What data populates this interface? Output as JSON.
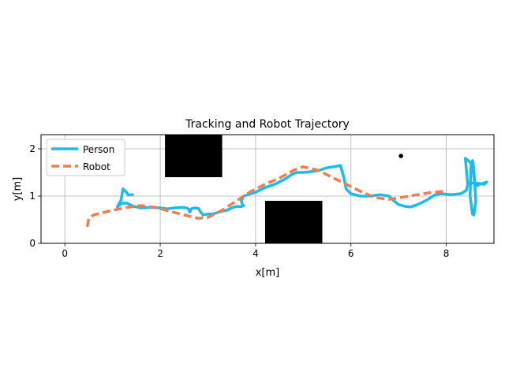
{
  "chart_data": {
    "type": "line",
    "title": "Tracking and Robot Trajectory",
    "xlabel": "x[m]",
    "ylabel": "y[m]",
    "xlim": [
      -0.5,
      9.0
    ],
    "ylim": [
      0,
      2.3
    ],
    "xticks": [
      0,
      2,
      4,
      6,
      8
    ],
    "yticks": [
      0,
      1,
      2
    ],
    "grid": true,
    "legend_position": "upper-left",
    "series": [
      {
        "name": "Person",
        "color": "#1ABCEB",
        "style": "solid",
        "points": [
          [
            1.42,
            1.03
          ],
          [
            1.33,
            1.02
          ],
          [
            1.3,
            1.07
          ],
          [
            1.22,
            1.15
          ],
          [
            1.2,
            1.05
          ],
          [
            1.18,
            0.92
          ],
          [
            1.1,
            0.77
          ],
          [
            1.2,
            0.85
          ],
          [
            1.3,
            0.85
          ],
          [
            1.45,
            0.78
          ],
          [
            1.6,
            0.75
          ],
          [
            1.8,
            0.76
          ],
          [
            2.0,
            0.75
          ],
          [
            2.15,
            0.73
          ],
          [
            2.3,
            0.75
          ],
          [
            2.45,
            0.76
          ],
          [
            2.55,
            0.75
          ],
          [
            2.6,
            0.72
          ],
          [
            2.62,
            0.66
          ],
          [
            2.65,
            0.73
          ],
          [
            2.72,
            0.75
          ],
          [
            2.8,
            0.74
          ],
          [
            2.85,
            0.66
          ],
          [
            2.9,
            0.6
          ],
          [
            3.0,
            0.62
          ],
          [
            3.1,
            0.62
          ],
          [
            3.2,
            0.65
          ],
          [
            3.3,
            0.68
          ],
          [
            3.4,
            0.7
          ],
          [
            3.5,
            0.75
          ],
          [
            3.6,
            0.78
          ],
          [
            3.7,
            0.78
          ],
          [
            3.75,
            0.8
          ],
          [
            3.72,
            0.83
          ],
          [
            3.7,
            0.9
          ],
          [
            3.75,
            1.0
          ],
          [
            3.9,
            1.05
          ],
          [
            4.0,
            1.08
          ],
          [
            4.2,
            1.18
          ],
          [
            4.4,
            1.25
          ],
          [
            4.6,
            1.35
          ],
          [
            4.75,
            1.45
          ],
          [
            4.85,
            1.5
          ],
          [
            5.0,
            1.5
          ],
          [
            5.2,
            1.52
          ],
          [
            5.35,
            1.55
          ],
          [
            5.5,
            1.6
          ],
          [
            5.7,
            1.63
          ],
          [
            5.78,
            1.65
          ],
          [
            5.85,
            1.4
          ],
          [
            5.9,
            1.15
          ],
          [
            6.0,
            1.05
          ],
          [
            6.2,
            1.0
          ],
          [
            6.4,
            1.0
          ],
          [
            6.6,
            1.03
          ],
          [
            6.8,
            1.0
          ],
          [
            6.9,
            0.9
          ],
          [
            7.0,
            0.82
          ],
          [
            7.15,
            0.78
          ],
          [
            7.25,
            0.77
          ],
          [
            7.4,
            0.82
          ],
          [
            7.6,
            0.92
          ],
          [
            7.75,
            1.02
          ],
          [
            7.9,
            1.05
          ],
          [
            8.1,
            1.03
          ],
          [
            8.3,
            1.05
          ],
          [
            8.42,
            1.12
          ],
          [
            8.45,
            1.25
          ],
          [
            8.4,
            1.8
          ],
          [
            8.52,
            1.7
          ],
          [
            8.5,
            1.0
          ],
          [
            8.55,
            0.62
          ],
          [
            8.58,
            0.6
          ],
          [
            8.62,
            0.9
          ],
          [
            8.58,
            1.55
          ],
          [
            8.55,
            1.75
          ],
          [
            8.6,
            1.2
          ],
          [
            8.7,
            1.25
          ],
          [
            8.8,
            1.28
          ],
          [
            8.85,
            1.3
          ],
          [
            8.8,
            1.25
          ],
          [
            8.6,
            1.28
          ],
          [
            8.45,
            1.27
          ]
        ]
      },
      {
        "name": "Robot",
        "color": "#F47C50",
        "style": "dashed",
        "points": [
          [
            0.47,
            0.35
          ],
          [
            0.5,
            0.52
          ],
          [
            0.6,
            0.6
          ],
          [
            0.8,
            0.65
          ],
          [
            1.0,
            0.7
          ],
          [
            1.3,
            0.76
          ],
          [
            1.6,
            0.8
          ],
          [
            1.9,
            0.76
          ],
          [
            2.2,
            0.68
          ],
          [
            2.5,
            0.6
          ],
          [
            2.8,
            0.53
          ],
          [
            3.0,
            0.55
          ],
          [
            3.3,
            0.7
          ],
          [
            3.6,
            0.9
          ],
          [
            3.9,
            1.1
          ],
          [
            4.2,
            1.25
          ],
          [
            4.5,
            1.38
          ],
          [
            4.8,
            1.55
          ],
          [
            5.0,
            1.62
          ],
          [
            5.3,
            1.55
          ],
          [
            5.6,
            1.4
          ],
          [
            5.9,
            1.25
          ],
          [
            6.2,
            1.1
          ],
          [
            6.5,
            0.97
          ],
          [
            6.8,
            0.93
          ],
          [
            7.1,
            0.98
          ],
          [
            7.4,
            1.03
          ],
          [
            7.7,
            1.08
          ],
          [
            7.95,
            1.1
          ]
        ]
      }
    ],
    "obstacles": [
      {
        "x": [
          2.1,
          3.3
        ],
        "y": [
          1.4,
          2.3
        ]
      },
      {
        "x": [
          4.2,
          5.4
        ],
        "y": [
          0.0,
          0.9
        ]
      }
    ],
    "markers": [
      {
        "x": 7.05,
        "y": 1.85,
        "color": "#000000"
      }
    ]
  }
}
